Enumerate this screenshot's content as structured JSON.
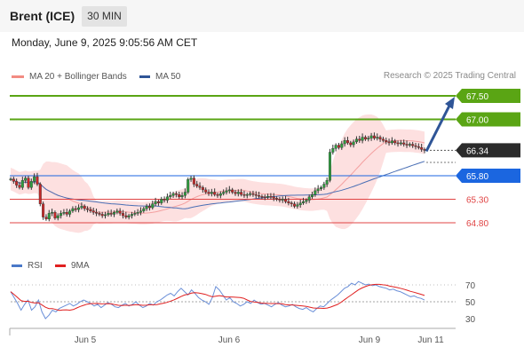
{
  "header": {
    "title": "Brent (ICE)",
    "timeframe": "30 MIN"
  },
  "datetime": "Monday, June 9, 2025 9:05:56 AM CET",
  "legend": {
    "bollinger": {
      "label": "MA 20 + Bollinger Bands",
      "color": "#f28b82"
    },
    "ma50": {
      "label": "MA 50",
      "color": "#2f5597"
    }
  },
  "credit": "Research © 2025 Trading Central",
  "rsi_legend": {
    "rsi": {
      "label": "RSI",
      "color": "#4a78c8"
    },
    "ma9": {
      "label": "9MA",
      "color": "#e02020"
    }
  },
  "chart_data": {
    "type": "candlestick",
    "instrument": "Brent (ICE)",
    "timeframe": "30 MIN",
    "price_range": [
      64.3,
      68.1
    ],
    "x_ticks": [
      "Jun 5",
      "Jun 6",
      "Jun 9",
      "Jun 11"
    ],
    "levels": [
      {
        "label": "67.50",
        "value": 67.5,
        "kind": "resistance",
        "color": "#5aa514"
      },
      {
        "label": "67.00",
        "value": 67.0,
        "kind": "resistance",
        "color": "#5aa514"
      },
      {
        "label": "66.34",
        "value": 66.34,
        "kind": "last",
        "color": "#2b2b2b"
      },
      {
        "label": "65.80",
        "value": 65.8,
        "kind": "pivot",
        "color": "#1b66e0"
      },
      {
        "label": "65.30",
        "value": 65.3,
        "kind": "support",
        "color": "#e04444"
      },
      {
        "label": "64.80",
        "value": 64.8,
        "kind": "support",
        "color": "#e04444"
      }
    ],
    "target_arrow": {
      "from": 66.32,
      "to": 67.48
    },
    "ohlc_close": [
      65.73,
      65.68,
      65.6,
      65.55,
      65.7,
      65.75,
      65.55,
      65.68,
      65.78,
      65.62,
      65.2,
      64.92,
      64.88,
      65.0,
      65.02,
      64.9,
      64.95,
      65.0,
      65.02,
      64.98,
      65.05,
      65.1,
      65.08,
      65.12,
      65.15,
      65.1,
      65.08,
      65.05,
      65.02,
      65.0,
      64.98,
      64.95,
      64.97,
      65.0,
      64.98,
      65.02,
      65.05,
      65.0,
      64.95,
      64.92,
      64.95,
      64.98,
      65.0,
      65.02,
      65.05,
      65.1,
      65.15,
      65.12,
      65.2,
      65.25,
      65.22,
      65.3,
      65.28,
      65.35,
      65.38,
      65.42,
      65.4,
      65.35,
      65.38,
      65.45,
      65.72,
      65.75,
      65.62,
      65.58,
      65.55,
      65.5,
      65.45,
      65.42,
      65.45,
      65.4,
      65.38,
      65.42,
      65.45,
      65.48,
      65.5,
      65.45,
      65.42,
      65.45,
      65.4,
      65.38,
      65.4,
      65.42,
      65.4,
      65.38,
      65.36,
      65.35,
      65.34,
      65.36,
      65.35,
      65.32,
      65.3,
      65.28,
      65.3,
      65.25,
      65.22,
      65.2,
      65.15,
      65.18,
      65.22,
      65.25,
      65.28,
      65.35,
      65.4,
      65.48,
      65.52,
      65.55,
      65.62,
      65.7,
      66.3,
      66.38,
      66.45,
      66.4,
      66.48,
      66.55,
      66.5,
      66.46,
      66.52,
      66.58,
      66.55,
      66.62,
      66.58,
      66.6,
      66.65,
      66.6,
      66.62,
      66.58,
      66.55,
      66.52,
      66.5,
      66.54,
      66.5,
      66.48,
      66.5,
      66.47,
      66.45,
      66.47,
      66.44,
      66.42,
      66.4,
      66.36,
      66.34
    ],
    "rsi": {
      "levels": [
        70,
        50,
        30
      ],
      "series": [
        62,
        55,
        48,
        40,
        47,
        52,
        40,
        44,
        52,
        38,
        30,
        34,
        40,
        38,
        42,
        44,
        46,
        48,
        45,
        47,
        50,
        52,
        50,
        48,
        45,
        47,
        43,
        46,
        49,
        47,
        44,
        43,
        46,
        48,
        45,
        47,
        50,
        46,
        43,
        45,
        48,
        46,
        50,
        52,
        55,
        58,
        60,
        57,
        62,
        66,
        62,
        58,
        64,
        60,
        55,
        52,
        50,
        47,
        55,
        68,
        64,
        58,
        52,
        55,
        50,
        48,
        45,
        47,
        50,
        48,
        52,
        49,
        47,
        48,
        46,
        44,
        47,
        49,
        46,
        44,
        45,
        47,
        44,
        42,
        41,
        43,
        40,
        38,
        42,
        45,
        44,
        48,
        52,
        55,
        58,
        62,
        66,
        68,
        72,
        70,
        74,
        72,
        70,
        71,
        69,
        70,
        68,
        67,
        66,
        64,
        65,
        63,
        62,
        60,
        58,
        56,
        57,
        55,
        54,
        52
      ]
    }
  }
}
